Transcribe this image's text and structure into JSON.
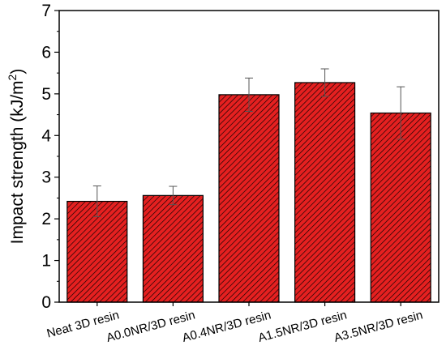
{
  "chart_data": {
    "type": "bar",
    "title": "",
    "xlabel": "",
    "ylabel": "Impact strength (kJ/m",
    "ylabel_superscript": "2",
    "ylabel_suffix": ")",
    "categories": [
      "Neat 3D resin",
      "A0.0NR/3D resin",
      "A0.4NR/3D resin",
      "A1.5NR/3D resin",
      "A3.5NR/3D resin"
    ],
    "values": [
      2.42,
      2.56,
      4.98,
      5.27,
      4.54
    ],
    "error_bars": [
      0.37,
      0.22,
      0.4,
      0.33,
      0.63
    ],
    "ylim": [
      0,
      7
    ],
    "yticks": [
      "0",
      "1",
      "2",
      "3",
      "4",
      "5",
      "6",
      "7"
    ],
    "grid": false,
    "bar_color": "#e52020",
    "hatch": "diagonal",
    "hatch_color": "#000000"
  }
}
